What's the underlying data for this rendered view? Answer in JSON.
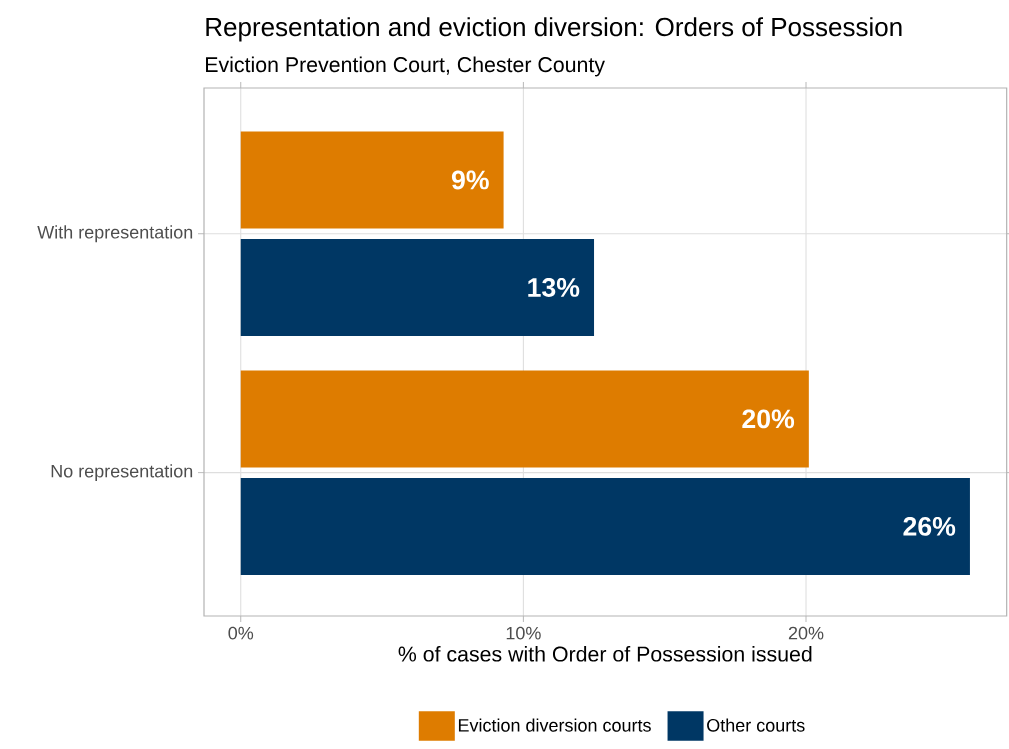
{
  "chart_data": {
    "type": "bar",
    "orientation": "horizontal",
    "title": "Representation and eviction diversion: Orders of Possession",
    "subtitle": "Eviction Prevention Court, Chester County",
    "xlabel": "% of cases with Order of Possession issued",
    "categories": [
      "With representation",
      "No representation"
    ],
    "series": [
      {
        "name": "Eviction diversion courts",
        "color": "#de7c00",
        "values": [
          9.3,
          20.1
        ],
        "value_labels": [
          "9%",
          "20%"
        ]
      },
      {
        "name": "Other courts",
        "color": "#003764",
        "values": [
          12.5,
          25.8
        ],
        "value_labels": [
          "13%",
          "26%"
        ]
      }
    ],
    "xlim": [
      -1.3,
      27.1
    ],
    "xticks": [
      {
        "value": 0,
        "label": "0%"
      },
      {
        "value": 10,
        "label": "10%"
      },
      {
        "value": 20,
        "label": "20%"
      }
    ],
    "grid": true,
    "legend": "bottom"
  }
}
